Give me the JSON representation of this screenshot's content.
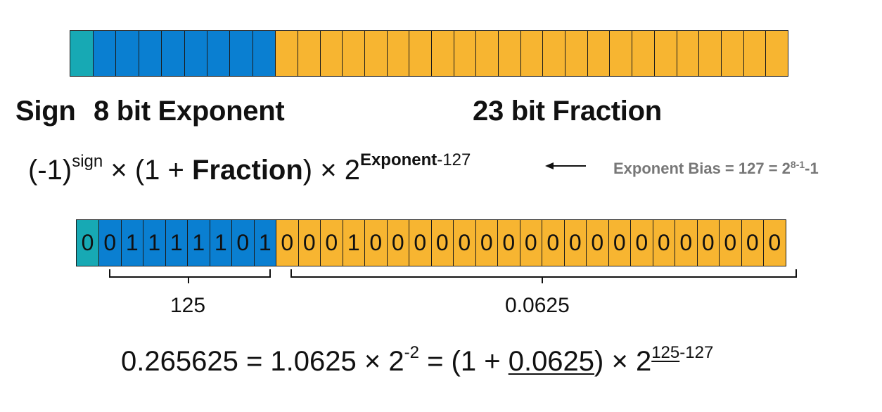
{
  "colors": {
    "sign": "#17a9b4",
    "exponent": "#0a7fd1",
    "fraction": "#f7b531"
  },
  "labels": {
    "sign": "Sign",
    "exponent": "8 bit Exponent",
    "fraction": "23 bit Fraction"
  },
  "formula": {
    "base": "(-1)",
    "sign_sup": "sign",
    "times1": " × (1 + ",
    "fraction_word": "Fraction",
    "times2": ") × 2",
    "exp_word": "Exponent",
    "exp_tail": "-127"
  },
  "arrow": "←",
  "bias_note": {
    "text": "Exponent Bias = 127 = 2",
    "sup": "8-1",
    "tail": "-1"
  },
  "bits": {
    "sign": [
      "0"
    ],
    "exponent": [
      "0",
      "1",
      "1",
      "1",
      "1",
      "1",
      "0",
      "1"
    ],
    "fraction": [
      "0",
      "0",
      "0",
      "1",
      "0",
      "0",
      "0",
      "0",
      "0",
      "0",
      "0",
      "0",
      "0",
      "0",
      "0",
      "0",
      "0",
      "0",
      "0",
      "0",
      "0",
      "0",
      "0"
    ]
  },
  "values": {
    "exponent": "125",
    "fraction": "0.0625"
  },
  "equation": {
    "lhs": "0.265625 = 1.0625 × 2",
    "lhs_sup": "-2",
    "mid": " = (1 + ",
    "underlined": "0.0625",
    "rhs": ") × 2",
    "rhs_sup_underlined": "125",
    "rhs_sup_tail": "-127"
  }
}
